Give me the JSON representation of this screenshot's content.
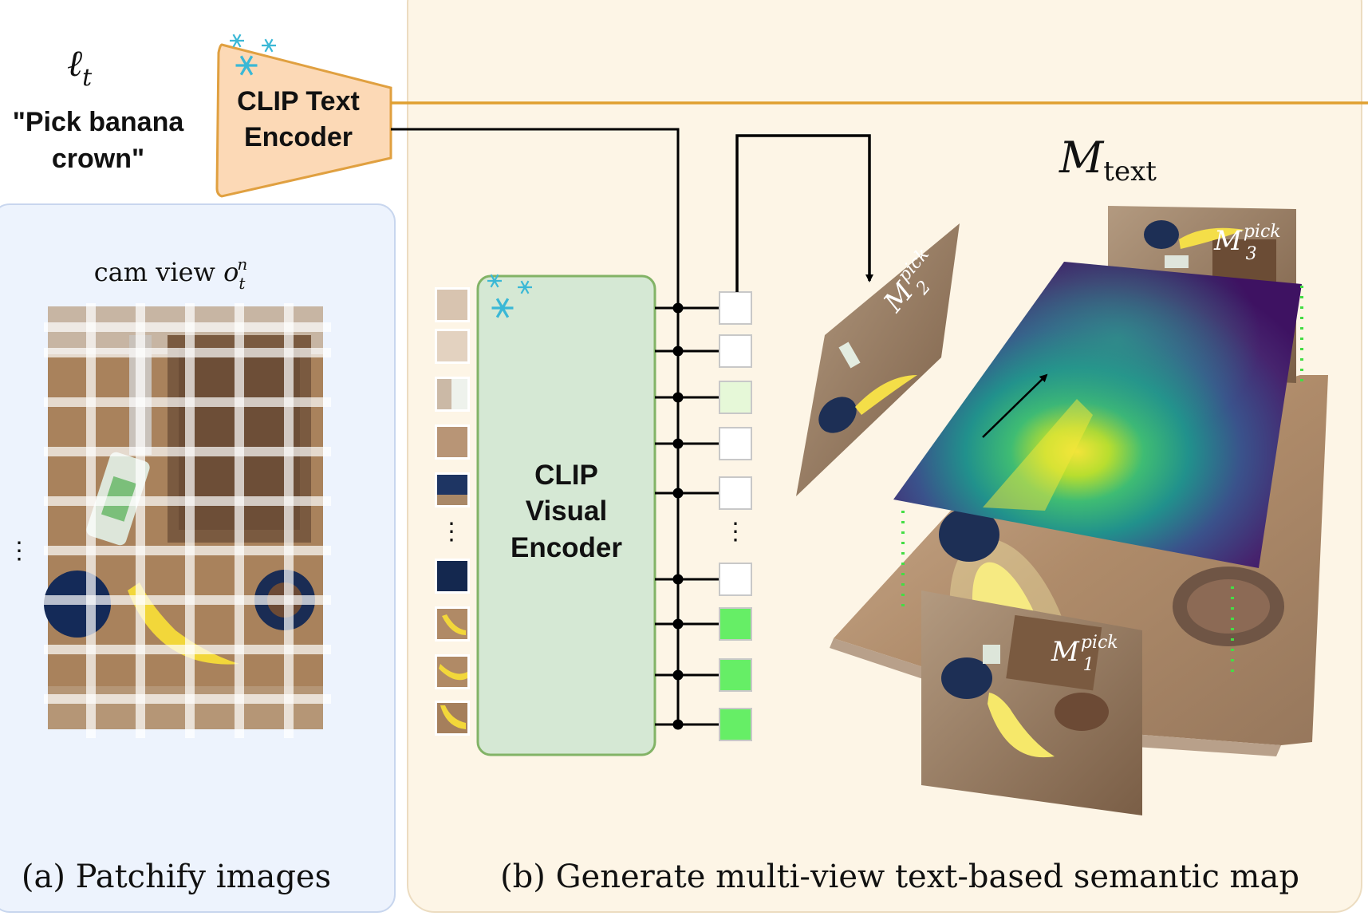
{
  "prompt": {
    "symbol": "ℓ",
    "symbol_sub": "t",
    "text_line1": "\"Pick banana",
    "text_line2": "crown\""
  },
  "text_encoder": {
    "line1": "CLIP Text",
    "line2": "Encoder"
  },
  "visual_encoder": {
    "line1": "CLIP",
    "line2": "Visual",
    "line3": "Encoder"
  },
  "panel_a": {
    "cam_label": "cam view ",
    "cam_symbol": "o",
    "cam_sub": "t",
    "cam_sup": "n",
    "ellipsis": "⋮",
    "caption": "(a) Patchify images"
  },
  "panel_b": {
    "map_symbol": "M",
    "map_sub": "text",
    "view_symbol": "M",
    "view_sup": "pick",
    "view_subs": [
      "1",
      "2",
      "3"
    ],
    "ellipsis": "⋮",
    "caption": "(b) Generate multi-view text-based semantic map"
  },
  "icons": [
    "snowflake-icon",
    "snowflake-icon"
  ],
  "colors": {
    "panel_a_bg": "#edf3fd",
    "panel_b_bg": "#fdf5e6",
    "text_encoder_fill": "#fcd9b6",
    "text_encoder_stroke": "#e0a040",
    "visual_encoder_fill": "#d5e8d4",
    "visual_encoder_stroke": "#82b366",
    "orange_line": "#e0a030",
    "feature_active": "#66ee66",
    "feature_faint": "#e6f8d8",
    "snowflake": "#3ab8d6"
  }
}
